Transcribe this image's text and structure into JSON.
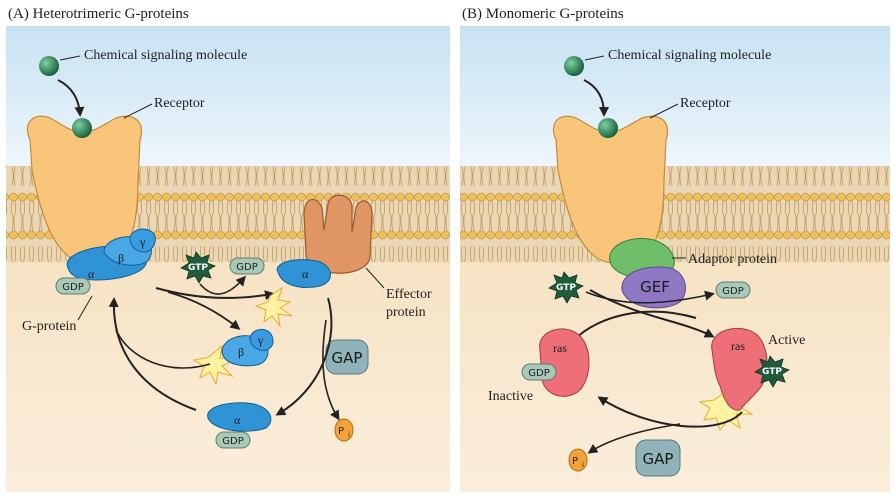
{
  "panel_a": {
    "title": "(A)  Heterotrimeric G-proteins",
    "signal_label": "Chemical signaling molecule",
    "receptor_label": "Receptor",
    "gprotein_label": "G-protein",
    "effector_label_1": "Effector",
    "effector_label_2": "protein",
    "alpha": "α",
    "beta": "β",
    "gamma": "γ",
    "gdp": "GDP",
    "gtp": "GTP",
    "gap": "GAP",
    "pi": "P",
    "pi_sub": "i"
  },
  "panel_b": {
    "title": "(B)  Monomeric G-proteins",
    "signal_label": "Chemical signaling molecule",
    "receptor_label": "Receptor",
    "adaptor_label": "Adaptor protein",
    "gef": "GEF",
    "ras": "ras",
    "active_label": "Active",
    "inactive_label": "Inactive",
    "gdp": "GDP",
    "gtp": "GTP",
    "gap": "GAP",
    "pi": "P",
    "pi_sub": "i"
  },
  "colors": {
    "sky_top": "#cde6f5",
    "cytoplasm": "#f8e6c9",
    "lipid_head": "#f0bf5c",
    "receptor": "#f9c57a",
    "signal": "#1f7a4f",
    "gprotein": "#2f93d6",
    "effector": "#df9564",
    "gtp_star": "#1f5c3c",
    "gdp_pill": "#a9c8b8",
    "gap": "#8fb3b8",
    "ras": "#ef6f78",
    "gef": "#8e78c4",
    "adaptor": "#6fbf6a",
    "pi": "#f2a43a",
    "flash": "#fff2a0"
  }
}
